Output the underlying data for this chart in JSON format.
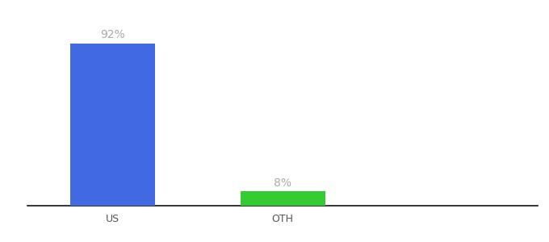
{
  "categories": [
    "US",
    "OTH"
  ],
  "values": [
    92,
    8
  ],
  "bar_colors": [
    "#4169e1",
    "#33cc33"
  ],
  "label_texts": [
    "92%",
    "8%"
  ],
  "label_color": "#aaaaaa",
  "ylim": [
    0,
    100
  ],
  "background_color": "#ffffff",
  "bar_width": 0.5,
  "label_fontsize": 10,
  "tick_fontsize": 9,
  "tick_color": "#555555",
  "x_positions": [
    1,
    2
  ],
  "xlim": [
    0.5,
    3.5
  ]
}
